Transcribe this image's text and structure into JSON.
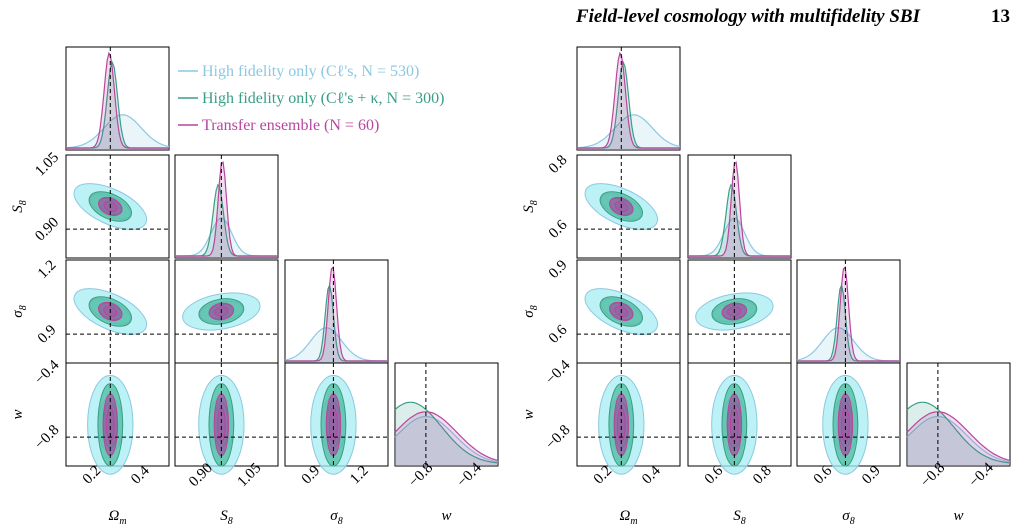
{
  "header": {
    "title": "Field-level cosmology with multifidelity SBI",
    "page": "13"
  },
  "legend": [
    {
      "label": "High fidelity only (Cℓ's, N = 530)",
      "color": "#8cc8e2"
    },
    {
      "label": "High fidelity only (Cℓ's + κ, N = 300)",
      "color": "#3a9e86"
    },
    {
      "label": "Transfer ensemble (N = 60)",
      "color": "#b8459f"
    }
  ],
  "axis_labels": [
    {
      "symbol": "Ω",
      "sub": "m"
    },
    {
      "symbol": "S",
      "sub": "8"
    },
    {
      "symbol": "σ",
      "sub": "8"
    },
    {
      "symbol": "w",
      "sub": ""
    }
  ],
  "plots": [
    {
      "x_ticks": [
        [
          "0.2",
          "0.4"
        ],
        [
          "0.90",
          "1.05"
        ],
        [
          "0.9",
          "1.2"
        ],
        [
          "−0.8",
          "−0.4"
        ]
      ],
      "y_ticks": [
        [
          "1.05",
          "0.90"
        ],
        [
          "1.2",
          "0.9"
        ],
        [
          "−0.4",
          "−0.8"
        ]
      ]
    },
    {
      "x_ticks": [
        [
          "0.2",
          "0.4"
        ],
        [
          "0.6",
          "0.8"
        ],
        [
          "0.6",
          "0.9"
        ],
        [
          "−0.8",
          "−0.4"
        ]
      ],
      "y_ticks": [
        [
          "0.8",
          "0.6"
        ],
        [
          "0.9",
          "0.6"
        ],
        [
          "−0.4",
          "−0.8"
        ]
      ]
    }
  ]
}
